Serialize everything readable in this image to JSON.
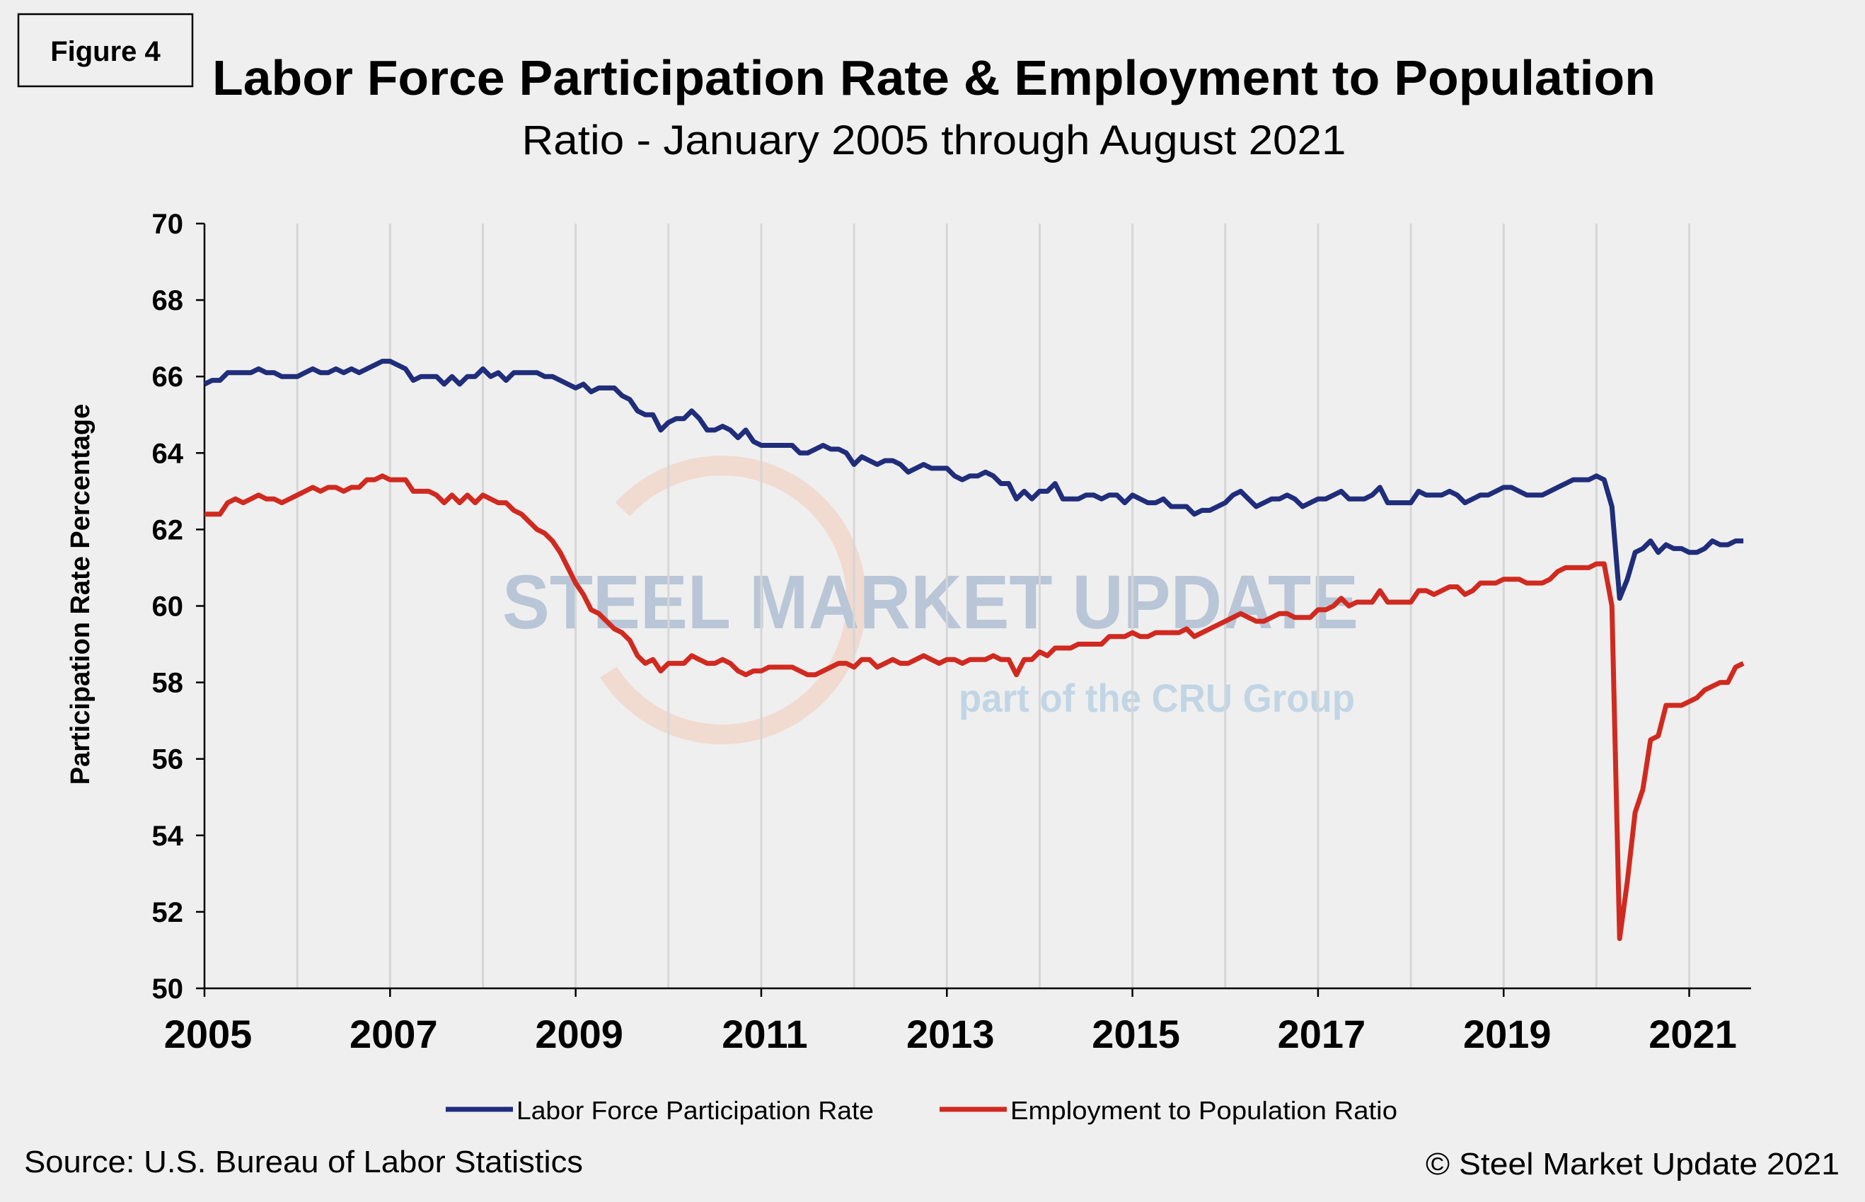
{
  "figure_label": "Figure 4",
  "source": "Source: U.S. Bureau  of Labor Statistics",
  "copyright": "© Steel Market Update 2021",
  "watermark": {
    "line1_bold": "STEEL MARKET",
    "line1_light": "UPDATE",
    "line2_a": "part of the",
    "line2_logo": "CRU",
    "line2_b": "Group"
  },
  "chart_data": {
    "type": "line",
    "title": "Labor Force Participation Rate & Employment to Population",
    "subtitle": "Ratio - January 2005 through August 2021",
    "xlabel": "",
    "ylabel": "Participation Rate Percentage",
    "x_start": "2005-01",
    "x_end": "2021-08",
    "x_frequency": "monthly",
    "xlim": [
      "2005-01",
      "2021-09"
    ],
    "x_tick_labels": [
      "2005",
      "2007",
      "2009",
      "2011",
      "2013",
      "2015",
      "2017",
      "2019",
      "2021"
    ],
    "ylim": [
      50,
      70
    ],
    "y_tick_labels": [
      "50",
      "52",
      "54",
      "56",
      "58",
      "60",
      "62",
      "64",
      "66",
      "68",
      "70"
    ],
    "grid": {
      "vertical": true,
      "horizontal": false,
      "vertical_every_year": true
    },
    "legend_position": "bottom",
    "series": [
      {
        "name": "Labor Force Participation Rate",
        "color": "#1f2d7a",
        "values": [
          65.8,
          65.9,
          65.9,
          66.1,
          66.1,
          66.1,
          66.1,
          66.2,
          66.1,
          66.1,
          66.0,
          66.0,
          66.0,
          66.1,
          66.2,
          66.1,
          66.1,
          66.2,
          66.1,
          66.2,
          66.1,
          66.2,
          66.3,
          66.4,
          66.4,
          66.3,
          66.2,
          65.9,
          66.0,
          66.0,
          66.0,
          65.8,
          66.0,
          65.8,
          66.0,
          66.0,
          66.2,
          66.0,
          66.1,
          65.9,
          66.1,
          66.1,
          66.1,
          66.1,
          66.0,
          66.0,
          65.9,
          65.8,
          65.7,
          65.8,
          65.6,
          65.7,
          65.7,
          65.7,
          65.5,
          65.4,
          65.1,
          65.0,
          65.0,
          64.6,
          64.8,
          64.9,
          64.9,
          65.1,
          64.9,
          64.6,
          64.6,
          64.7,
          64.6,
          64.4,
          64.6,
          64.3,
          64.2,
          64.2,
          64.2,
          64.2,
          64.2,
          64.0,
          64.0,
          64.1,
          64.2,
          64.1,
          64.1,
          64.0,
          63.7,
          63.9,
          63.8,
          63.7,
          63.8,
          63.8,
          63.7,
          63.5,
          63.6,
          63.7,
          63.6,
          63.6,
          63.6,
          63.4,
          63.3,
          63.4,
          63.4,
          63.5,
          63.4,
          63.2,
          63.2,
          62.8,
          63.0,
          62.8,
          63.0,
          63.0,
          63.2,
          62.8,
          62.8,
          62.8,
          62.9,
          62.9,
          62.8,
          62.9,
          62.9,
          62.7,
          62.9,
          62.8,
          62.7,
          62.7,
          62.8,
          62.6,
          62.6,
          62.6,
          62.4,
          62.5,
          62.5,
          62.6,
          62.7,
          62.9,
          63.0,
          62.8,
          62.6,
          62.7,
          62.8,
          62.8,
          62.9,
          62.8,
          62.6,
          62.7,
          62.8,
          62.8,
          62.9,
          63.0,
          62.8,
          62.8,
          62.8,
          62.9,
          63.1,
          62.7,
          62.7,
          62.7,
          62.7,
          63.0,
          62.9,
          62.9,
          62.9,
          63.0,
          62.9,
          62.7,
          62.8,
          62.9,
          62.9,
          63.0,
          63.1,
          63.1,
          63.0,
          62.9,
          62.9,
          62.9,
          63.0,
          63.1,
          63.2,
          63.3,
          63.3,
          63.3,
          63.4,
          63.3,
          62.6,
          60.2,
          60.7,
          61.4,
          61.5,
          61.7,
          61.4,
          61.6,
          61.5,
          61.5,
          61.4,
          61.4,
          61.5,
          61.7,
          61.6,
          61.6,
          61.7,
          61.7
        ]
      },
      {
        "name": "Employment to Population Ratio",
        "color": "#d02a20",
        "values": [
          62.4,
          62.4,
          62.4,
          62.7,
          62.8,
          62.7,
          62.8,
          62.9,
          62.8,
          62.8,
          62.7,
          62.8,
          62.9,
          63.0,
          63.1,
          63.0,
          63.1,
          63.1,
          63.0,
          63.1,
          63.1,
          63.3,
          63.3,
          63.4,
          63.3,
          63.3,
          63.3,
          63.0,
          63.0,
          63.0,
          62.9,
          62.7,
          62.9,
          62.7,
          62.9,
          62.7,
          62.9,
          62.8,
          62.7,
          62.7,
          62.5,
          62.4,
          62.2,
          62.0,
          61.9,
          61.7,
          61.4,
          61.0,
          60.6,
          60.3,
          59.9,
          59.8,
          59.6,
          59.4,
          59.3,
          59.1,
          58.7,
          58.5,
          58.6,
          58.3,
          58.5,
          58.5,
          58.5,
          58.7,
          58.6,
          58.5,
          58.5,
          58.6,
          58.5,
          58.3,
          58.2,
          58.3,
          58.3,
          58.4,
          58.4,
          58.4,
          58.4,
          58.3,
          58.2,
          58.2,
          58.3,
          58.4,
          58.5,
          58.5,
          58.4,
          58.6,
          58.6,
          58.4,
          58.5,
          58.6,
          58.5,
          58.5,
          58.6,
          58.7,
          58.6,
          58.5,
          58.6,
          58.6,
          58.5,
          58.6,
          58.6,
          58.6,
          58.7,
          58.6,
          58.6,
          58.2,
          58.6,
          58.6,
          58.8,
          58.7,
          58.9,
          58.9,
          58.9,
          59.0,
          59.0,
          59.0,
          59.0,
          59.2,
          59.2,
          59.2,
          59.3,
          59.2,
          59.2,
          59.3,
          59.3,
          59.3,
          59.3,
          59.4,
          59.2,
          59.3,
          59.4,
          59.5,
          59.6,
          59.7,
          59.8,
          59.7,
          59.6,
          59.6,
          59.7,
          59.8,
          59.8,
          59.7,
          59.7,
          59.7,
          59.9,
          59.9,
          60.0,
          60.2,
          60.0,
          60.1,
          60.1,
          60.1,
          60.4,
          60.1,
          60.1,
          60.1,
          60.1,
          60.4,
          60.4,
          60.3,
          60.4,
          60.5,
          60.5,
          60.3,
          60.4,
          60.6,
          60.6,
          60.6,
          60.7,
          60.7,
          60.7,
          60.6,
          60.6,
          60.6,
          60.7,
          60.9,
          61.0,
          61.0,
          61.0,
          61.0,
          61.1,
          61.1,
          60.0,
          51.3,
          52.8,
          54.6,
          55.2,
          56.5,
          56.6,
          57.4,
          57.4,
          57.4,
          57.5,
          57.6,
          57.8,
          57.9,
          58.0,
          58.0,
          58.4,
          58.5
        ]
      }
    ]
  }
}
